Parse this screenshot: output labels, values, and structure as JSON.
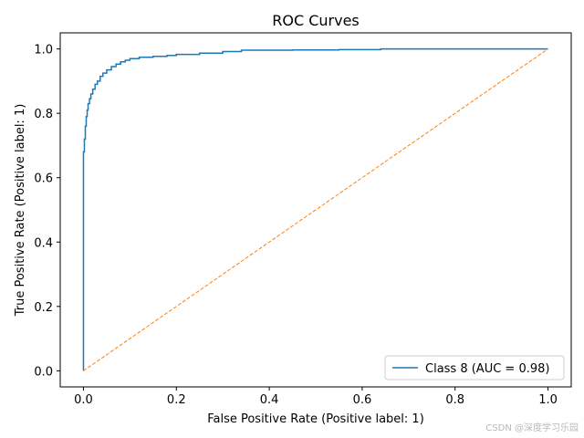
{
  "chart_data": {
    "type": "line",
    "title": "ROC Curves",
    "xlabel": "False Positive Rate (Positive label: 1)",
    "ylabel": "True Positive Rate (Positive label: 1)",
    "xlim": [
      -0.05,
      1.05
    ],
    "ylim": [
      -0.05,
      1.05
    ],
    "xticks": [
      0.0,
      0.2,
      0.4,
      0.6,
      0.8,
      1.0
    ],
    "yticks": [
      0.0,
      0.2,
      0.4,
      0.6,
      0.8,
      1.0
    ],
    "xtick_labels": [
      "0.0",
      "0.2",
      "0.4",
      "0.6",
      "0.8",
      "1.0"
    ],
    "ytick_labels": [
      "0.0",
      "0.2",
      "0.4",
      "0.6",
      "0.8",
      "1.0"
    ],
    "grid": false,
    "legend_position": "lower-right",
    "series": [
      {
        "name": "Class 8 (AUC = 0.98)",
        "color": "#1f77b4",
        "style": "solid-step",
        "x": [
          0.0,
          0.0,
          0.002,
          0.004,
          0.006,
          0.008,
          0.01,
          0.013,
          0.016,
          0.02,
          0.025,
          0.03,
          0.036,
          0.042,
          0.05,
          0.06,
          0.07,
          0.08,
          0.09,
          0.1,
          0.12,
          0.15,
          0.18,
          0.2,
          0.25,
          0.3,
          0.34,
          0.45,
          0.55,
          0.64,
          0.64,
          0.8,
          1.0
        ],
        "y": [
          0.0,
          0.68,
          0.72,
          0.76,
          0.79,
          0.81,
          0.83,
          0.845,
          0.86,
          0.875,
          0.89,
          0.9,
          0.915,
          0.925,
          0.935,
          0.945,
          0.953,
          0.96,
          0.965,
          0.97,
          0.974,
          0.977,
          0.98,
          0.983,
          0.987,
          0.992,
          0.996,
          0.997,
          0.998,
          0.998,
          1.0,
          1.0,
          1.0
        ]
      },
      {
        "name": "",
        "color": "#ff7f0e",
        "style": "dashed",
        "x": [
          0.0,
          1.0
        ],
        "y": [
          0.0,
          1.0
        ]
      }
    ]
  },
  "watermark": "CSDN @深度学习乐园"
}
